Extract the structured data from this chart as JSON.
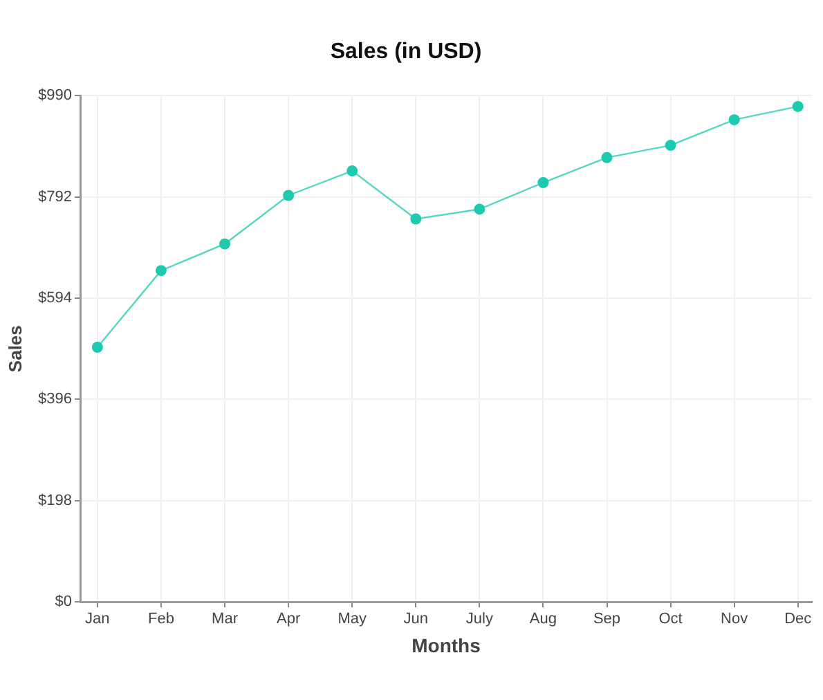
{
  "chart_data": {
    "type": "line",
    "title": "Sales (in USD)",
    "xlabel": "Months",
    "ylabel": "Sales",
    "categories": [
      "Jan",
      "Feb",
      "Mar",
      "Apr",
      "May",
      "Jun",
      "July",
      "Aug",
      "Sep",
      "Oct",
      "Nov",
      "Dec"
    ],
    "series": [
      {
        "color": "#1ec9b0",
        "values": [
          498,
          648,
          700,
          795,
          843,
          749,
          768,
          820,
          869,
          893,
          943,
          969
        ]
      }
    ],
    "ylim": [
      0,
      990
    ],
    "yticks": [
      {
        "value": 0,
        "label": "$0"
      },
      {
        "value": 198,
        "label": "$198"
      },
      {
        "value": 396,
        "label": "$396"
      },
      {
        "value": 594,
        "label": "$594"
      },
      {
        "value": 792,
        "label": "$792"
      },
      {
        "value": 990,
        "label": "$990"
      }
    ],
    "grid": true,
    "marker": "circle"
  }
}
